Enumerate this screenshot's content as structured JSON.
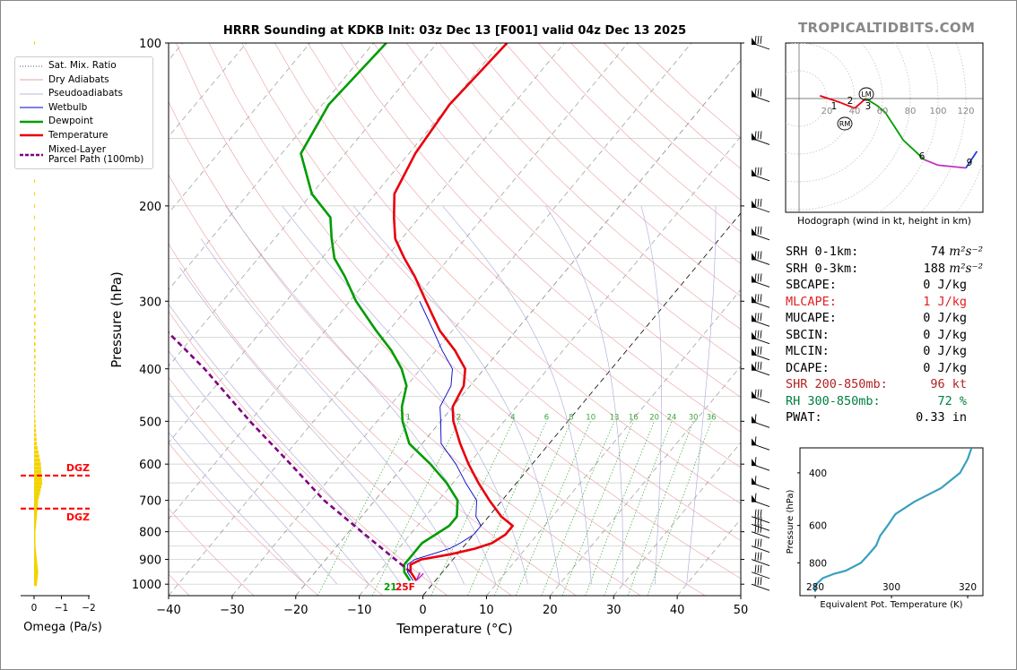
{
  "title": "HRRR Sounding at KDKB Init: 03z Dec 13 [F001] valid 04z Dec 13 2025",
  "watermark": "TROPICALTIDBITS.COM",
  "colors": {
    "temperature": "#e8000b",
    "dewpoint": "#009c00",
    "wetbulb": "#0000cc",
    "parcel": "#800080",
    "dgz": "#ff0000",
    "omega": "#f2d400",
    "theta_e": "#3a9fbf"
  },
  "legend": [
    {
      "label": "Sat. Mix. Ratio",
      "style": "dotted",
      "color": "#555"
    },
    {
      "label": "Dry Adiabats",
      "style": "solid-thin",
      "color": "#e8a0a0"
    },
    {
      "label": "Pseudoadiabats",
      "style": "solid-thin",
      "color": "#b8b8d8"
    },
    {
      "label": "Wetbulb",
      "style": "solid-thin",
      "color": "#0000cc"
    },
    {
      "label": "Dewpoint",
      "style": "solid",
      "color": "#009c00"
    },
    {
      "label": "Temperature",
      "style": "solid",
      "color": "#e8000b"
    },
    {
      "label": "Mixed-Layer\nParcel Path (100mb)",
      "style": "dashed",
      "color": "#800080"
    }
  ],
  "skewt": {
    "xlabel": "Temperature (°C)",
    "ylabel": "Pressure (hPa)",
    "xticks": [
      -40,
      -30,
      -20,
      -10,
      0,
      10,
      20,
      30,
      40,
      50
    ],
    "yticks": [
      100,
      200,
      300,
      400,
      500,
      600,
      700,
      800,
      900,
      1000
    ],
    "mix_ratio_labels": [
      "1",
      "2",
      "4",
      "6",
      "8",
      "10",
      "13",
      "16",
      "20",
      "24",
      "30",
      "36"
    ],
    "sfc_readout": "21",
    "sfc_readout2": "25F"
  },
  "omega": {
    "xlabel": "Omega (Pa/s)",
    "xticks": [
      "0",
      "−1",
      "−2"
    ],
    "dgz_label": "DGZ"
  },
  "hodograph": {
    "caption": "Hodograph (wind in kt, height in km)",
    "ring_labels": [
      "20",
      "40",
      "60",
      "80",
      "100",
      "120"
    ],
    "height_labels": [
      "1",
      "2",
      "3",
      "6",
      "9"
    ],
    "markers": [
      "LM",
      "RM"
    ]
  },
  "theta_e": {
    "xlabel": "Equivalent Pot. Temperature (K)",
    "ylabel": "Pressure (hPa)",
    "xticks": [
      "280",
      "300",
      "320"
    ],
    "yticks": [
      "400",
      "600",
      "800"
    ]
  },
  "indices": [
    {
      "label": "SRH 0-1km:",
      "value": "74",
      "unit": "m²s⁻²",
      "color": "#000"
    },
    {
      "label": "SRH 0-3km:",
      "value": "188",
      "unit": "m²s⁻²",
      "color": "#000"
    },
    {
      "label": "SBCAPE:",
      "value": "0 J/kg",
      "unit": "",
      "color": "#000"
    },
    {
      "label": "MLCAPE:",
      "value": "1 J/kg",
      "unit": "",
      "color": "#e02020"
    },
    {
      "label": "MUCAPE:",
      "value": "0 J/kg",
      "unit": "",
      "color": "#000"
    },
    {
      "label": "SBCIN:",
      "value": "0 J/kg",
      "unit": "",
      "color": "#000"
    },
    {
      "label": "MLCIN:",
      "value": "0 J/kg",
      "unit": "",
      "color": "#000"
    },
    {
      "label": "DCAPE:",
      "value": "0 J/kg",
      "unit": "",
      "color": "#000"
    },
    {
      "label": "SHR 200-850mb:",
      "value": "96 kt",
      "unit": "",
      "color": "#b22222"
    },
    {
      "label": "RH 300-850mb:",
      "value": "72 %",
      "unit": "",
      "color": "#008040"
    },
    {
      "label": "PWAT:",
      "value": "0.33 in",
      "unit": "",
      "color": "#000"
    }
  ],
  "chart_data": [
    {
      "type": "line",
      "title": "HRRR Sounding at KDKB Init: 03z Dec 13 [F001] valid 04z Dec 13 2025",
      "xlabel": "Temperature (°C)",
      "ylabel": "Pressure (hPa)",
      "xlim": [
        -40,
        50
      ],
      "ylim": [
        1050,
        100
      ],
      "yscale": "log",
      "skew": true,
      "series": [
        {
          "name": "Temperature",
          "p": [
            985,
            950,
            920,
            900,
            880,
            860,
            840,
            810,
            780,
            750,
            700,
            650,
            600,
            550,
            500,
            470,
            430,
            400,
            370,
            340,
            300,
            270,
            250,
            230,
            210,
            190,
            160,
            130,
            100
          ],
          "t": [
            -3,
            -5,
            -6,
            -5,
            -1,
            2,
            4,
            5,
            5,
            2,
            -2,
            -6,
            -10,
            -14,
            -18,
            -20,
            -21,
            -23,
            -27,
            -32,
            -38,
            -43,
            -47,
            -51,
            -54,
            -57,
            -59,
            -60,
            -59
          ]
        },
        {
          "name": "Dewpoint",
          "p": [
            985,
            950,
            920,
            900,
            880,
            860,
            840,
            810,
            780,
            750,
            700,
            650,
            600,
            550,
            500,
            470,
            430,
            400,
            370,
            340,
            300,
            270,
            250,
            230,
            210,
            190,
            160,
            130,
            100
          ],
          "t": [
            -4,
            -6,
            -7,
            -7,
            -7,
            -7,
            -7,
            -6,
            -5,
            -5,
            -7,
            -11,
            -16,
            -22,
            -26,
            -28,
            -30,
            -33,
            -37,
            -42,
            -49,
            -54,
            -58,
            -61,
            -64,
            -70,
            -77,
            -79,
            -78
          ]
        },
        {
          "name": "Wetbulb",
          "p": [
            985,
            950,
            920,
            900,
            880,
            860,
            840,
            810,
            780,
            750,
            700,
            650,
            600,
            550,
            500,
            470,
            430,
            400,
            370,
            340,
            300
          ],
          "t": [
            -3.5,
            -5.5,
            -6.5,
            -6,
            -4,
            -2,
            -1,
            0,
            0,
            -2,
            -4,
            -8,
            -12,
            -17,
            -20,
            -22,
            -23,
            -25,
            -29,
            -33,
            -39
          ]
        },
        {
          "name": "Mixed-Layer Parcel Path (100mb)",
          "p": [
            950,
            800,
            700,
            600,
            500,
            400,
            330
          ],
          "t": [
            -5,
            -18,
            -28,
            -38,
            -50,
            -64,
            -77
          ]
        }
      ]
    },
    {
      "type": "bar",
      "xlabel": "Omega (Pa/s)",
      "x": [
        1000,
        950,
        900,
        850,
        800,
        750,
        700,
        650,
        600,
        550,
        500,
        450,
        400,
        350,
        300,
        250,
        200,
        150,
        100
      ],
      "values": [
        -0.1,
        -0.15,
        -0.1,
        -0.05,
        -0.05,
        -0.1,
        -0.15,
        -0.3,
        -0.25,
        -0.1,
        -0.05,
        0,
        -0.05,
        -0.05,
        -0.05,
        0,
        -0.02,
        -0.02,
        0
      ]
    },
    {
      "type": "line",
      "title": "Hodograph (wind in kt, height in km)",
      "series": [
        {
          "name": "Hodograph",
          "u": [
            15,
            30,
            40,
            48,
            56,
            62,
            75,
            90,
            100,
            120,
            128
          ],
          "v": [
            2,
            -3,
            -7,
            0,
            -5,
            -10,
            -30,
            -44,
            -48,
            -50,
            -38
          ]
        }
      ]
    },
    {
      "type": "line",
      "xlabel": "Equivalent Pot. Temperature (K)",
      "ylabel": "Pressure (hPa)",
      "xlim": [
        276,
        324
      ],
      "series": [
        {
          "name": "Theta-E",
          "p": [
            1000,
            950,
            900,
            870,
            850,
            800,
            750,
            700,
            650,
            600,
            550,
            500,
            450,
            400,
            360,
            330
          ],
          "t": [
            280,
            280,
            282,
            285,
            288,
            292,
            294,
            296,
            297,
            299,
            301,
            306,
            313,
            318,
            320,
            321
          ]
        }
      ]
    }
  ]
}
